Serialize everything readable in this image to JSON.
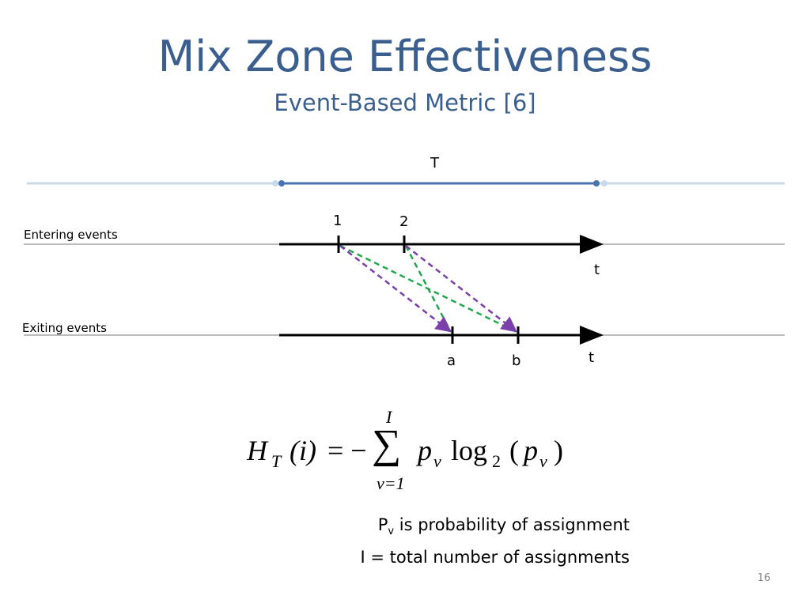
{
  "slide": {
    "title": "Mix Zone Effectiveness",
    "subtitle": "Event-Based Metric [6]",
    "page_number": "16"
  },
  "diagram": {
    "period_label": "T",
    "entering_label": "Entering events",
    "exiting_label": "Exiting events",
    "time_axis_label": "t",
    "enter_events": [
      "1",
      "2"
    ],
    "exit_events": [
      "a",
      "b"
    ],
    "colors": {
      "period_line": "#4a74b0",
      "period_line_faint": "#c8d9ea",
      "green_mapping": "#22a84a",
      "purple_mapping": "#7a3fa8",
      "timeline": "#000000",
      "guide_line": "#bbbbbb"
    }
  },
  "formula": {
    "lhs_H": "H",
    "lhs_T": "T",
    "lhs_arg": "(i)",
    "equals_minus": "= −",
    "sum_symbol": "∑",
    "upper_limit": "I",
    "lower_limit": "v=1",
    "p": "p",
    "p_sub": "v",
    "log": "log",
    "log_base": "2",
    "open_paren": "(",
    "p2": "p",
    "p2_sub": "v",
    "close_paren": ")"
  },
  "notes": {
    "line1_main": "P",
    "line1_sub": "v",
    "line1_rest": " is probability of assignment",
    "line2": "I = total number of assignments"
  }
}
